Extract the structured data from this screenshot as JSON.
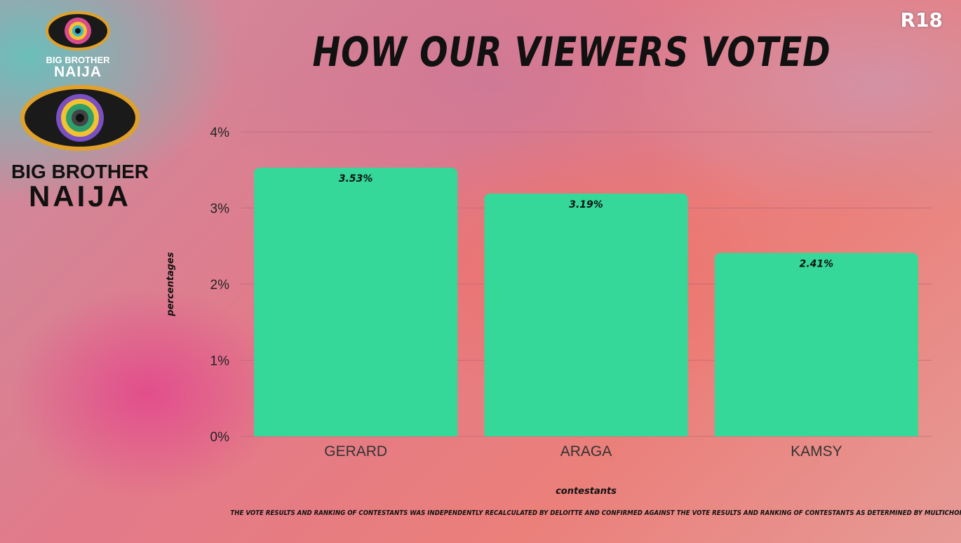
{
  "rating_badge": "R18",
  "logo_small": {
    "line1": "BIG BROTHER",
    "line2": "NAIJA"
  },
  "logo_big": {
    "line1": "BIG BROTHER",
    "line2": "NAIJA"
  },
  "colors": {
    "bar": "#35d898",
    "text": "#111111",
    "grid": "#b9677a"
  },
  "chart_data": {
    "type": "bar",
    "title": "HOW OUR VIEWERS VOTED",
    "xlabel": "contestants",
    "ylabel": "percentages",
    "categories": [
      "GERARD",
      "ARAGA",
      "KAMSY"
    ],
    "values": [
      3.53,
      3.19,
      2.41
    ],
    "value_labels": [
      "3.53%",
      "3.19%",
      "2.41%"
    ],
    "ylim": [
      0,
      4
    ],
    "yticks": [
      0,
      1,
      2,
      3,
      4
    ],
    "ytick_labels": [
      "0%",
      "1%",
      "2%",
      "3%",
      "4%"
    ],
    "grid": true,
    "legend": "none"
  },
  "footnote": "THE VOTE RESULTS AND RANKING OF CONTESTANTS WAS INDEPENDENTLY RECALCULATED BY DELOITTE AND CONFIRMED AGAINST THE VOTE RESULTS AND RANKING OF CONTESTANTS AS DETERMINED BY MULTICHOICE."
}
